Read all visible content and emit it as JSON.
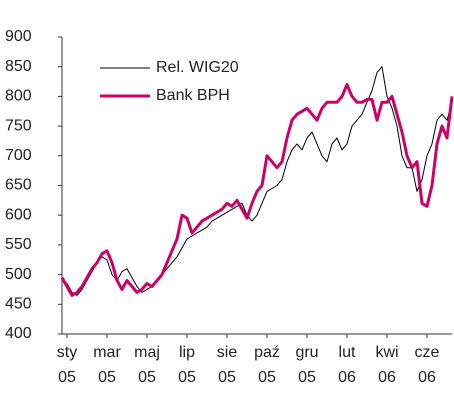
{
  "chart_data": {
    "type": "line",
    "xtick_labels": [
      {
        "month": "sty",
        "year": "05"
      },
      {
        "month": "mar",
        "year": "05"
      },
      {
        "month": "maj",
        "year": "05"
      },
      {
        "month": "lip",
        "year": "05"
      },
      {
        "month": "sie",
        "year": "05"
      },
      {
        "month": "paź",
        "year": "05"
      },
      {
        "month": "gru",
        "year": "05"
      },
      {
        "month": "lut",
        "year": "06"
      },
      {
        "month": "kwi",
        "year": "06"
      },
      {
        "month": "cze",
        "year": "06"
      }
    ],
    "xticks": [
      1,
      9,
      17,
      25,
      33,
      41,
      49,
      57,
      65,
      73
    ],
    "xlim": [
      0,
      78
    ],
    "ylim": [
      400,
      900
    ],
    "yticks": [
      400,
      450,
      500,
      550,
      600,
      650,
      700,
      750,
      800,
      850,
      900
    ],
    "x": [
      0,
      1,
      2,
      3,
      4,
      5,
      6,
      7,
      8,
      9,
      10,
      11,
      12,
      13,
      14,
      15,
      16,
      17,
      18,
      19,
      20,
      21,
      22,
      23,
      24,
      25,
      26,
      27,
      28,
      29,
      30,
      31,
      32,
      33,
      34,
      35,
      36,
      37,
      38,
      39,
      40,
      41,
      42,
      43,
      44,
      45,
      46,
      47,
      48,
      49,
      50,
      51,
      52,
      53,
      54,
      55,
      56,
      57,
      58,
      59,
      60,
      61,
      62,
      63,
      64,
      65,
      66,
      67,
      68,
      69,
      70,
      71,
      72,
      73,
      74,
      75,
      76,
      77,
      78
    ],
    "series": [
      {
        "name": "Rel. WIG20",
        "color": "#000000",
        "width": 1,
        "values": [
          490,
          485,
          470,
          465,
          475,
          490,
          505,
          520,
          530,
          525,
          500,
          490,
          505,
          510,
          495,
          480,
          470,
          475,
          480,
          490,
          500,
          510,
          520,
          530,
          545,
          560,
          565,
          570,
          575,
          580,
          590,
          595,
          600,
          605,
          610,
          615,
          620,
          600,
          590,
          600,
          620,
          640,
          645,
          650,
          660,
          690,
          710,
          720,
          710,
          730,
          740,
          720,
          700,
          690,
          720,
          730,
          710,
          720,
          750,
          760,
          770,
          790,
          810,
          840,
          850,
          800,
          780,
          750,
          700,
          680,
          680,
          640,
          660,
          700,
          720,
          760,
          770,
          760,
          790
        ]
      },
      {
        "name": "Bank BPH",
        "color": "#cc0066",
        "width": 3,
        "values": [
          495,
          480,
          465,
          470,
          480,
          495,
          510,
          520,
          535,
          540,
          520,
          490,
          475,
          490,
          480,
          470,
          475,
          485,
          480,
          490,
          500,
          520,
          540,
          560,
          600,
          595,
          570,
          580,
          590,
          595,
          600,
          605,
          610,
          620,
          615,
          625,
          610,
          595,
          620,
          640,
          650,
          700,
          690,
          680,
          690,
          730,
          760,
          770,
          775,
          780,
          770,
          760,
          780,
          790,
          790,
          790,
          800,
          820,
          800,
          790,
          790,
          795,
          795,
          760,
          790,
          790,
          800,
          770,
          740,
          700,
          680,
          690,
          620,
          615,
          650,
          720,
          750,
          730,
          800
        ]
      }
    ]
  }
}
